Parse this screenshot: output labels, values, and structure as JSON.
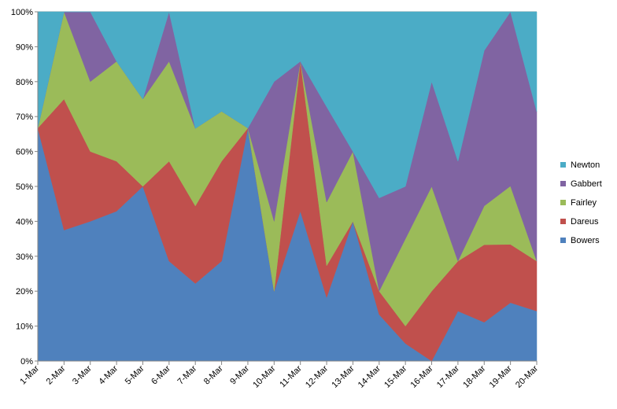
{
  "chart_data": {
    "type": "area",
    "stacked": true,
    "percent": true,
    "title": "",
    "xlabel": "",
    "ylabel": "",
    "ylim": [
      0,
      100
    ],
    "yticks": [
      "0%",
      "10%",
      "20%",
      "30%",
      "40%",
      "50%",
      "60%",
      "70%",
      "80%",
      "90%",
      "100%"
    ],
    "grid": true,
    "legend_position": "right",
    "categories": [
      "1-Mar",
      "2-Mar",
      "3-Mar",
      "4-Mar",
      "5-Mar",
      "6-Mar",
      "7-Mar",
      "8-Mar",
      "9-Mar",
      "10-Mar",
      "11-Mar",
      "12-Mar",
      "13-Mar",
      "14-Mar",
      "15-Mar",
      "16-Mar",
      "17-Mar",
      "18-Mar",
      "19-Mar",
      "20-Mar"
    ],
    "series": [
      {
        "name": "Bowers",
        "color": "#4F81BD",
        "values": [
          66.7,
          37.5,
          40.0,
          42.9,
          50.0,
          28.6,
          22.2,
          28.6,
          66.7,
          20.0,
          42.9,
          18.2,
          40.0,
          13.3,
          5.0,
          0.0,
          14.3,
          11.1,
          16.7,
          14.3
        ]
      },
      {
        "name": "Dareus",
        "color": "#C0504D",
        "values": [
          0.0,
          37.5,
          20.0,
          14.3,
          0.0,
          28.6,
          22.2,
          28.6,
          0.0,
          0.0,
          42.9,
          9.1,
          0.0,
          6.7,
          5.0,
          20.0,
          14.3,
          22.2,
          16.7,
          14.3
        ]
      },
      {
        "name": "Fairley",
        "color": "#9BBB59",
        "values": [
          0.0,
          25.0,
          20.0,
          28.6,
          25.0,
          28.6,
          22.2,
          14.3,
          0.0,
          20.0,
          0.0,
          18.2,
          20.0,
          0.0,
          25.0,
          30.0,
          0.0,
          11.1,
          16.7,
          0.0
        ]
      },
      {
        "name": "Gabbert",
        "color": "#8064A2",
        "values": [
          0.0,
          0.0,
          20.0,
          0.0,
          0.0,
          14.2,
          0.0,
          0.0,
          0.0,
          40.0,
          0.0,
          27.3,
          0.0,
          26.7,
          15.0,
          30.0,
          28.6,
          44.5,
          49.9,
          42.8
        ]
      },
      {
        "name": "Newton",
        "color": "#4BACC6",
        "values": [
          33.3,
          0.0,
          0.0,
          14.2,
          25.0,
          0.0,
          33.4,
          28.5,
          33.3,
          20.0,
          14.2,
          27.2,
          40.0,
          53.3,
          50.0,
          20.0,
          42.8,
          11.1,
          0.0,
          28.6
        ]
      }
    ]
  }
}
